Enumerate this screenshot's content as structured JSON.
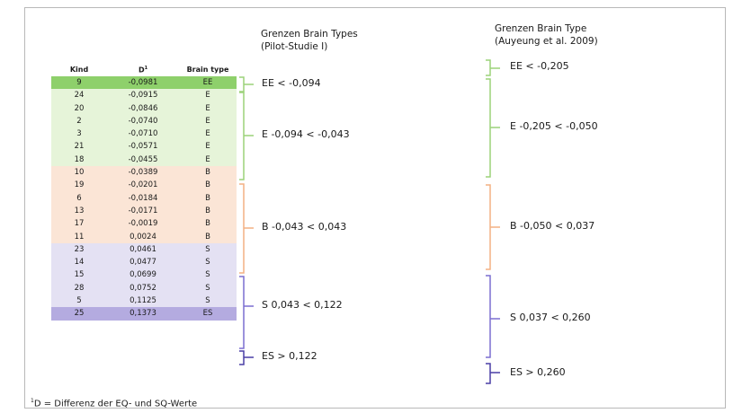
{
  "table": {
    "headers": {
      "kind": "Kind",
      "d": "D",
      "d_sup": "1",
      "type": "Brain type"
    },
    "rows": [
      {
        "kind": "9",
        "d": "-0,0981",
        "type": "EE"
      },
      {
        "kind": "24",
        "d": "-0,0915",
        "type": "E"
      },
      {
        "kind": "20",
        "d": "-0,0846",
        "type": "E"
      },
      {
        "kind": "2",
        "d": "-0,0740",
        "type": "E"
      },
      {
        "kind": "3",
        "d": "-0,0710",
        "type": "E"
      },
      {
        "kind": "21",
        "d": "-0,0571",
        "type": "E"
      },
      {
        "kind": "18",
        "d": "-0,0455",
        "type": "E"
      },
      {
        "kind": "10",
        "d": "-0,0389",
        "type": "B"
      },
      {
        "kind": "19",
        "d": "-0,0201",
        "type": "B"
      },
      {
        "kind": "6",
        "d": "-0,0184",
        "type": "B"
      },
      {
        "kind": "13",
        "d": "-0,0171",
        "type": "B"
      },
      {
        "kind": "17",
        "d": "-0,0019",
        "type": "B"
      },
      {
        "kind": "11",
        "d": "0,0024",
        "type": "B"
      },
      {
        "kind": "23",
        "d": "0,0461",
        "type": "S"
      },
      {
        "kind": "14",
        "d": "0,0477",
        "type": "S"
      },
      {
        "kind": "15",
        "d": "0,0699",
        "type": "S"
      },
      {
        "kind": "28",
        "d": "0,0752",
        "type": "S"
      },
      {
        "kind": "5",
        "d": "0,1125",
        "type": "S"
      },
      {
        "kind": "25",
        "d": "0,1373",
        "type": "ES"
      }
    ]
  },
  "pilot": {
    "title_1": "Grenzen Brain Types",
    "title_2": "(Pilot-Studie I)",
    "ee": "EE < -0,094",
    "e": "E -0,094 < -0,043",
    "b": "B -0,043 < 0,043",
    "s": "S 0,043 < 0,122",
    "es": "ES > 0,122"
  },
  "auyeung": {
    "title_1": "Grenzen Brain Type",
    "title_2": "(Auyeung et al. 2009)",
    "ee": "EE < -0,205",
    "e": "E -0,205 < -0,050",
    "b": "B -0,050 < 0,037",
    "s": "S 0,037 < 0,260",
    "es": "ES > 0,260"
  },
  "footnote": {
    "sup": "1",
    "text": "D = Differenz der EQ- und SQ-Werte"
  },
  "colors": {
    "green": "#9bd279",
    "orange": "#f4b183",
    "purple": "#7b6fd0",
    "ee_row": "#8ed06b",
    "es_row": "#b4abe0"
  }
}
